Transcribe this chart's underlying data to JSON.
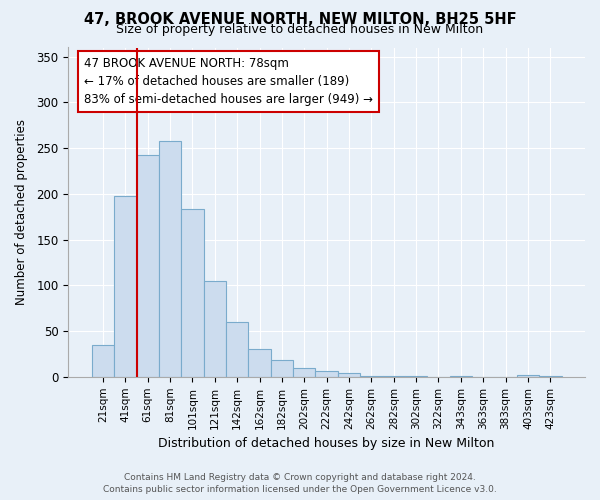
{
  "title": "47, BROOK AVENUE NORTH, NEW MILTON, BH25 5HF",
  "subtitle": "Size of property relative to detached houses in New Milton",
  "xlabel": "Distribution of detached houses by size in New Milton",
  "ylabel": "Number of detached properties",
  "bar_labels": [
    "21sqm",
    "41sqm",
    "61sqm",
    "81sqm",
    "101sqm",
    "121sqm",
    "142sqm",
    "162sqm",
    "182sqm",
    "202sqm",
    "222sqm",
    "242sqm",
    "262sqm",
    "282sqm",
    "302sqm",
    "322sqm",
    "343sqm",
    "363sqm",
    "383sqm",
    "403sqm",
    "423sqm"
  ],
  "bar_values": [
    35,
    198,
    242,
    258,
    184,
    105,
    60,
    30,
    18,
    10,
    6,
    4,
    1,
    1,
    1,
    0,
    1,
    0,
    0,
    2,
    1
  ],
  "bar_color": "#ccdcee",
  "bar_edge_color": "#7aabcc",
  "vline_color": "#cc0000",
  "vline_position": 1.5,
  "annotation_title": "47 BROOK AVENUE NORTH: 78sqm",
  "annotation_line1": "← 17% of detached houses are smaller (189)",
  "annotation_line2": "83% of semi-detached houses are larger (949) →",
  "ylim": [
    0,
    360
  ],
  "yticks": [
    0,
    50,
    100,
    150,
    200,
    250,
    300,
    350
  ],
  "bg_color": "#e8f0f8",
  "plot_bg_color": "#e8f0f8",
  "grid_color": "#ffffff",
  "footer_line1": "Contains HM Land Registry data © Crown copyright and database right 2024.",
  "footer_line2": "Contains public sector information licensed under the Open Government Licence v3.0."
}
